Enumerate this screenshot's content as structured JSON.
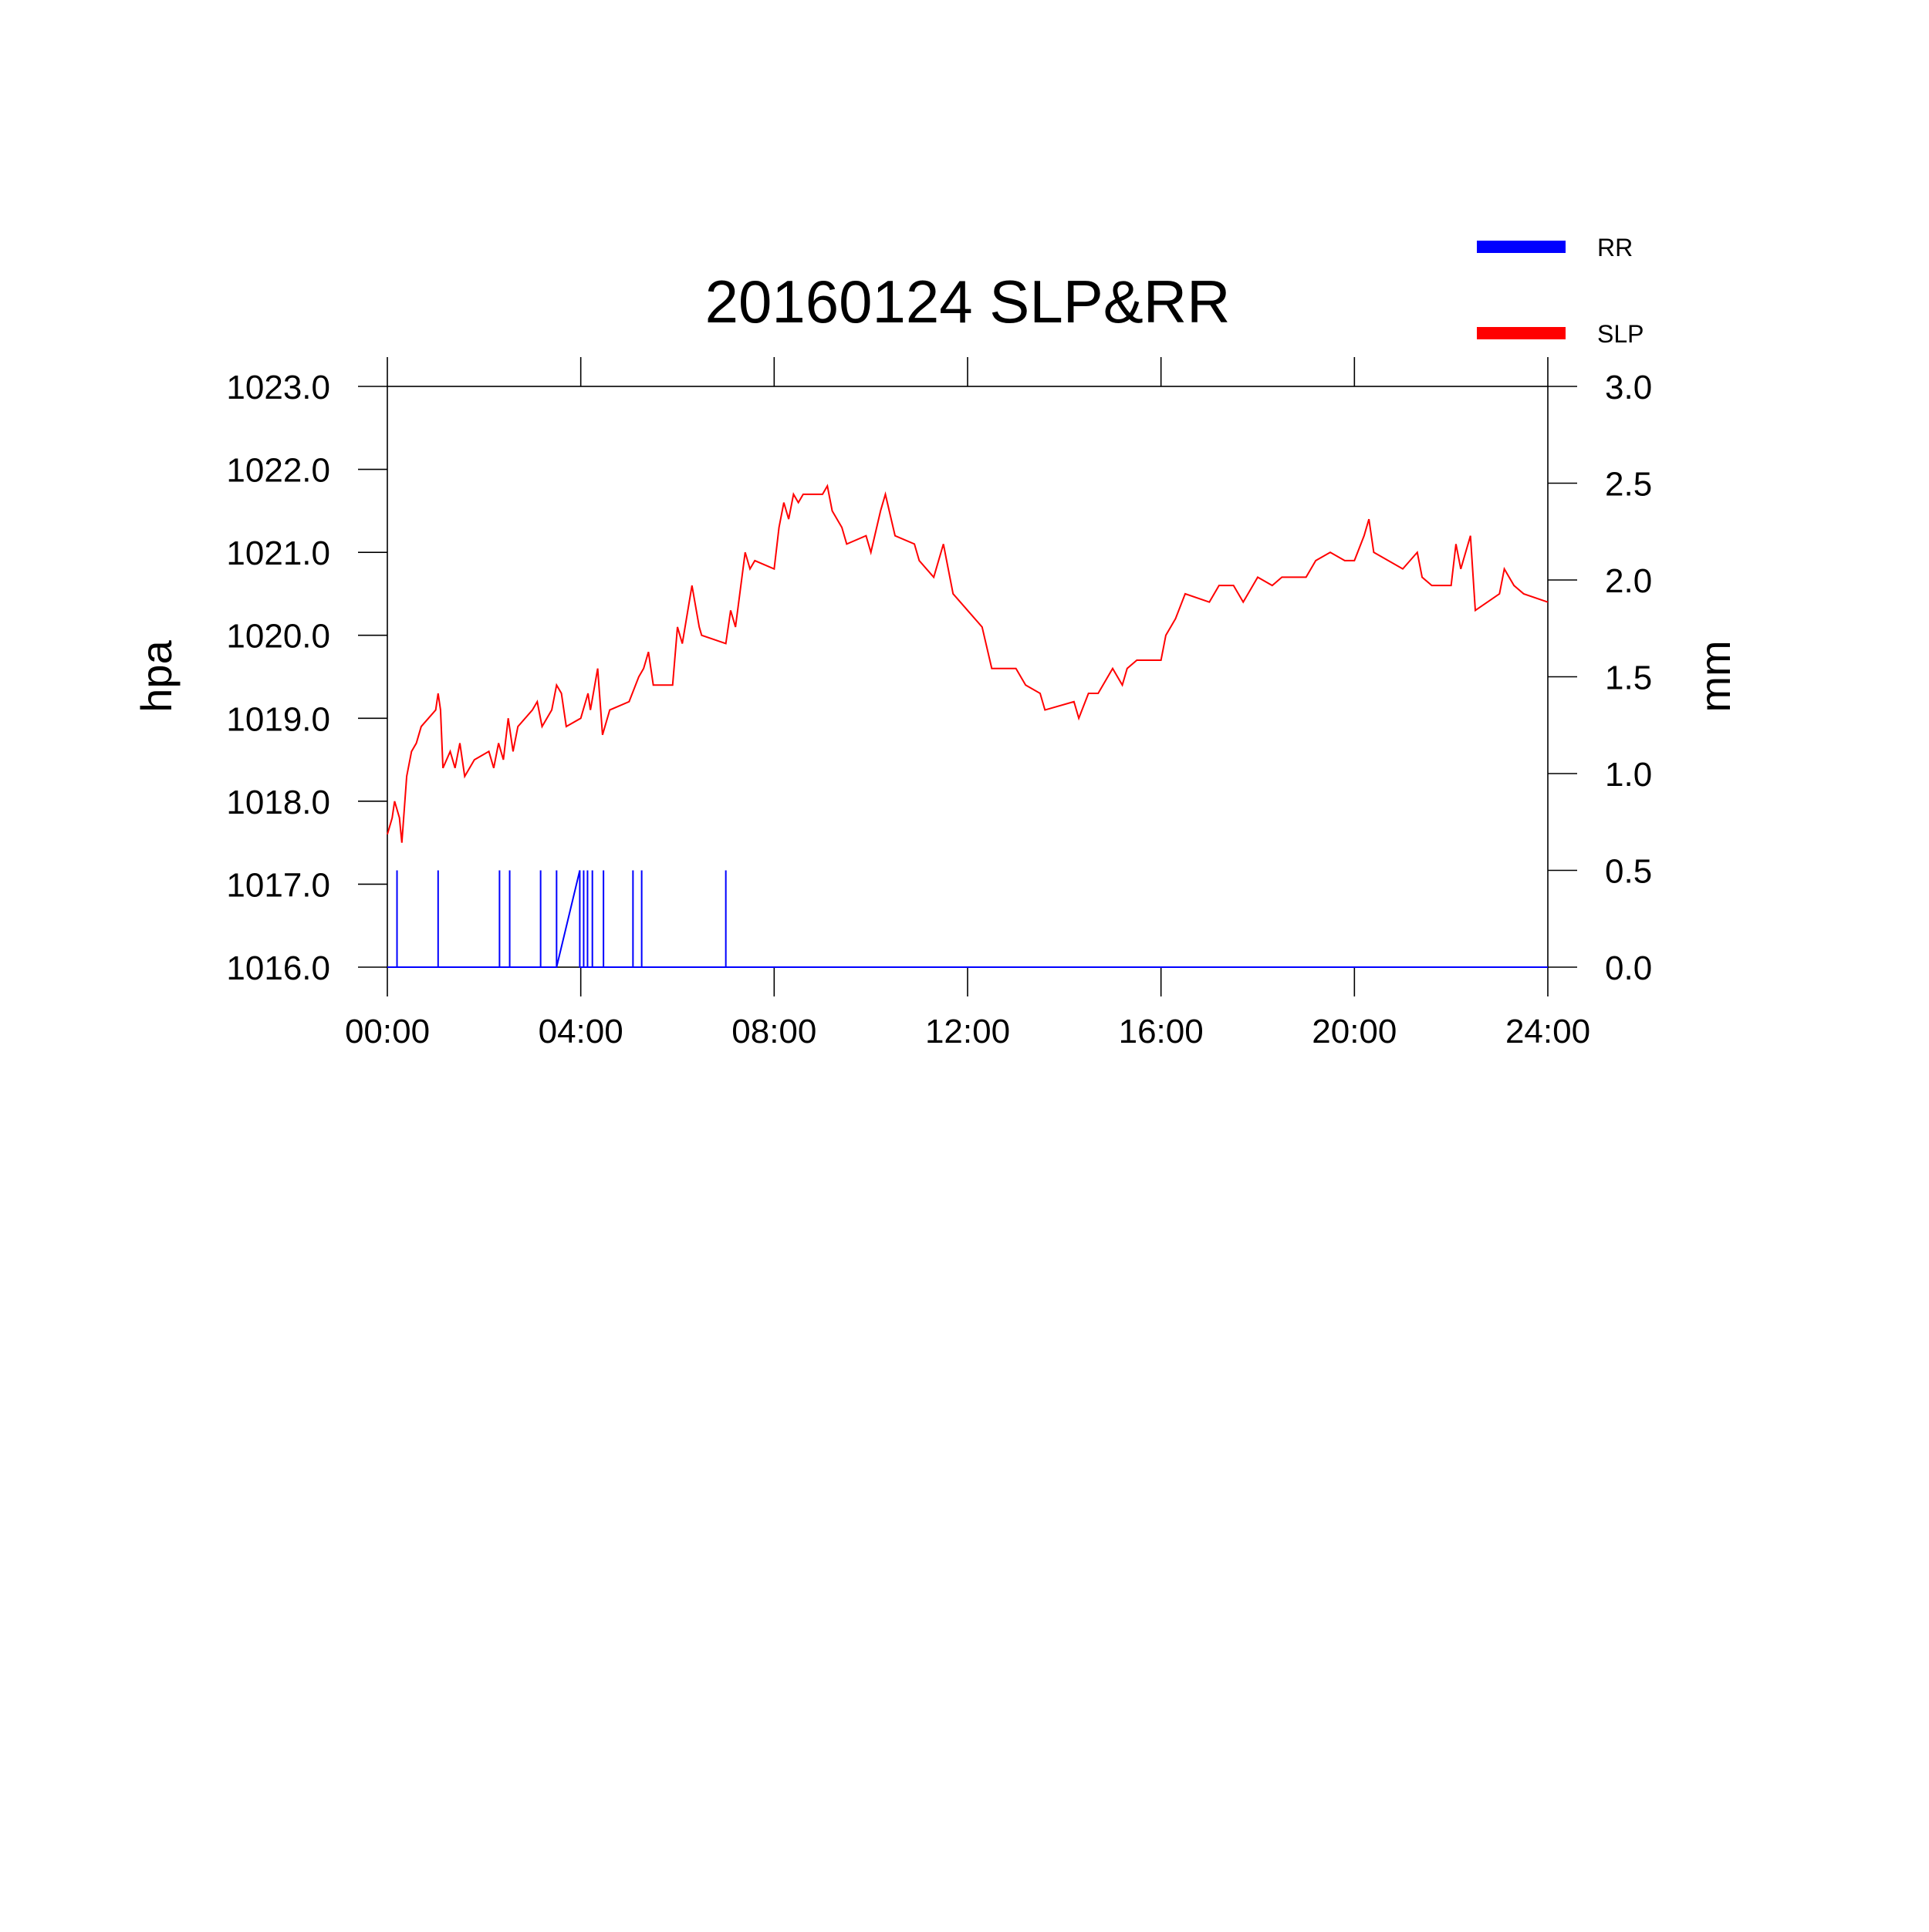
{
  "chart_data": {
    "type": "line",
    "title": "20160124 SLP&RR",
    "ylabel": "hpa",
    "y2label": "mm",
    "xlim": [
      0,
      24
    ],
    "xticks": [
      {
        "value": 0,
        "label": "00:00"
      },
      {
        "value": 4,
        "label": "04:00"
      },
      {
        "value": 8,
        "label": "08:00"
      },
      {
        "value": 12,
        "label": "12:00"
      },
      {
        "value": 16,
        "label": "16:00"
      },
      {
        "value": 20,
        "label": "20:00"
      },
      {
        "value": 24,
        "label": "24:00"
      }
    ],
    "ylim": [
      1016,
      1023
    ],
    "yticks": [
      {
        "value": 1016,
        "label": "1016.0"
      },
      {
        "value": 1017,
        "label": "1017.0"
      },
      {
        "value": 1018,
        "label": "1018.0"
      },
      {
        "value": 1019,
        "label": "1019.0"
      },
      {
        "value": 1020,
        "label": "1020.0"
      },
      {
        "value": 1021,
        "label": "1021.0"
      },
      {
        "value": 1022,
        "label": "1022.0"
      },
      {
        "value": 1023,
        "label": "1023.0"
      }
    ],
    "y2lim": [
      0,
      3
    ],
    "y2ticks": [
      {
        "value": 0,
        "label": "0.0"
      },
      {
        "value": 0.5,
        "label": "0.5"
      },
      {
        "value": 1,
        "label": "1.0"
      },
      {
        "value": 1.5,
        "label": "1.5"
      },
      {
        "value": 2,
        "label": "2.0"
      },
      {
        "value": 2.5,
        "label": "2.5"
      },
      {
        "value": 3,
        "label": "3.0"
      }
    ],
    "legend": "top-right",
    "series": [
      {
        "name": "RR",
        "color": "#0000ff",
        "axis": "y2",
        "x": [
          0,
          0.2,
          0.2,
          0.2,
          1.05,
          1.05,
          1.05,
          2.32,
          2.32,
          2.32,
          2.53,
          2.53,
          2.53,
          3.17,
          3.17,
          3.17,
          3.5,
          3.5,
          3.5,
          3.98,
          3.98,
          4.06,
          4.06,
          4.06,
          4.14,
          4.14,
          4.14,
          4.24,
          4.24,
          4.24,
          4.47,
          4.47,
          4.47,
          5.08,
          5.08,
          5.08,
          5.26,
          5.26,
          5.26,
          7.0,
          7.0,
          7.0,
          24
        ],
        "values": [
          0,
          0,
          0.5,
          0,
          0,
          0.5,
          0,
          0,
          0.5,
          0,
          0,
          0.5,
          0,
          0,
          0.5,
          0,
          0,
          0.5,
          0,
          0.5,
          0,
          0,
          0.5,
          0,
          0,
          0.5,
          0,
          0,
          0.5,
          0,
          0,
          0.5,
          0,
          0,
          0.5,
          0,
          0,
          0.5,
          0,
          0,
          0.5,
          0,
          0
        ]
      },
      {
        "name": "SLP",
        "color": "#ff0000",
        "x": [
          0,
          0.1,
          0.15,
          0.25,
          0.3,
          0.4,
          0.5,
          0.6,
          0.7,
          1.0,
          1.05,
          1.1,
          1.15,
          1.3,
          1.4,
          1.5,
          1.6,
          1.8,
          2.1,
          2.2,
          2.3,
          2.4,
          2.5,
          2.6,
          2.7,
          3.0,
          3.1,
          3.2,
          3.4,
          3.5,
          3.6,
          3.7,
          4.0,
          4.15,
          4.2,
          4.35,
          4.45,
          4.6,
          5.0,
          5.2,
          5.3,
          5.4,
          5.5,
          5.9,
          6.0,
          6.1,
          6.3,
          6.45,
          6.5,
          7.0,
          7.1,
          7.2,
          7.4,
          7.5,
          7.6,
          8.0,
          8.1,
          8.2,
          8.3,
          8.4,
          8.5,
          8.6,
          9.0,
          9.1,
          9.2,
          9.4,
          9.5,
          9.9,
          10.0,
          10.2,
          10.3,
          10.5,
          10.9,
          11.0,
          11.3,
          11.5,
          11.6,
          11.7,
          12.0,
          12.3,
          12.5,
          13.0,
          13.2,
          13.5,
          13.6,
          14.2,
          14.3,
          14.5,
          14.7,
          15.0,
          15.2,
          15.3,
          15.5,
          16.0,
          16.1,
          16.3,
          16.5,
          17.0,
          17.2,
          17.5,
          17.7,
          18.0,
          18.3,
          18.5,
          19.0,
          19.2,
          19.5,
          19.8,
          20.0,
          20.2,
          20.3,
          20.4,
          21.0,
          21.3,
          21.4,
          21.6,
          22.0,
          22.1,
          22.2,
          22.4,
          22.5,
          23.0,
          23.1,
          23.3,
          23.5,
          24.0
        ],
        "values": [
          1017.6,
          1017.8,
          1018.0,
          1017.8,
          1017.5,
          1018.3,
          1018.6,
          1018.7,
          1018.9,
          1019.1,
          1019.3,
          1019.1,
          1018.4,
          1018.6,
          1018.4,
          1018.7,
          1018.3,
          1018.5,
          1018.6,
          1018.4,
          1018.7,
          1018.5,
          1019.0,
          1018.6,
          1018.9,
          1019.1,
          1019.2,
          1018.9,
          1019.1,
          1019.4,
          1019.3,
          1018.9,
          1019.0,
          1019.3,
          1019.1,
          1019.6,
          1018.8,
          1019.1,
          1019.2,
          1019.5,
          1019.6,
          1019.8,
          1019.4,
          1019.4,
          1020.1,
          1019.9,
          1020.6,
          1020.1,
          1020.0,
          1019.9,
          1020.3,
          1020.1,
          1021.0,
          1020.8,
          1020.9,
          1020.8,
          1021.3,
          1021.6,
          1021.4,
          1021.7,
          1021.6,
          1021.7,
          1021.7,
          1021.8,
          1021.5,
          1021.3,
          1021.1,
          1021.2,
          1021.0,
          1021.5,
          1021.7,
          1021.2,
          1021.1,
          1020.9,
          1020.7,
          1021.1,
          1020.8,
          1020.5,
          1020.3,
          1020.1,
          1019.6,
          1019.6,
          1019.4,
          1019.3,
          1019.1,
          1019.2,
          1019.0,
          1019.3,
          1019.3,
          1019.6,
          1019.4,
          1019.6,
          1019.7,
          1019.7,
          1020.0,
          1020.2,
          1020.5,
          1020.4,
          1020.6,
          1020.6,
          1020.4,
          1020.7,
          1020.6,
          1020.7,
          1020.7,
          1020.9,
          1021.0,
          1020.9,
          1020.9,
          1021.2,
          1021.4,
          1021.0,
          1020.8,
          1021.0,
          1020.7,
          1020.6,
          1020.6,
          1021.1,
          1020.8,
          1021.2,
          1020.3,
          1020.5,
          1020.8,
          1020.6,
          1020.5,
          1020.4
        ]
      }
    ]
  }
}
